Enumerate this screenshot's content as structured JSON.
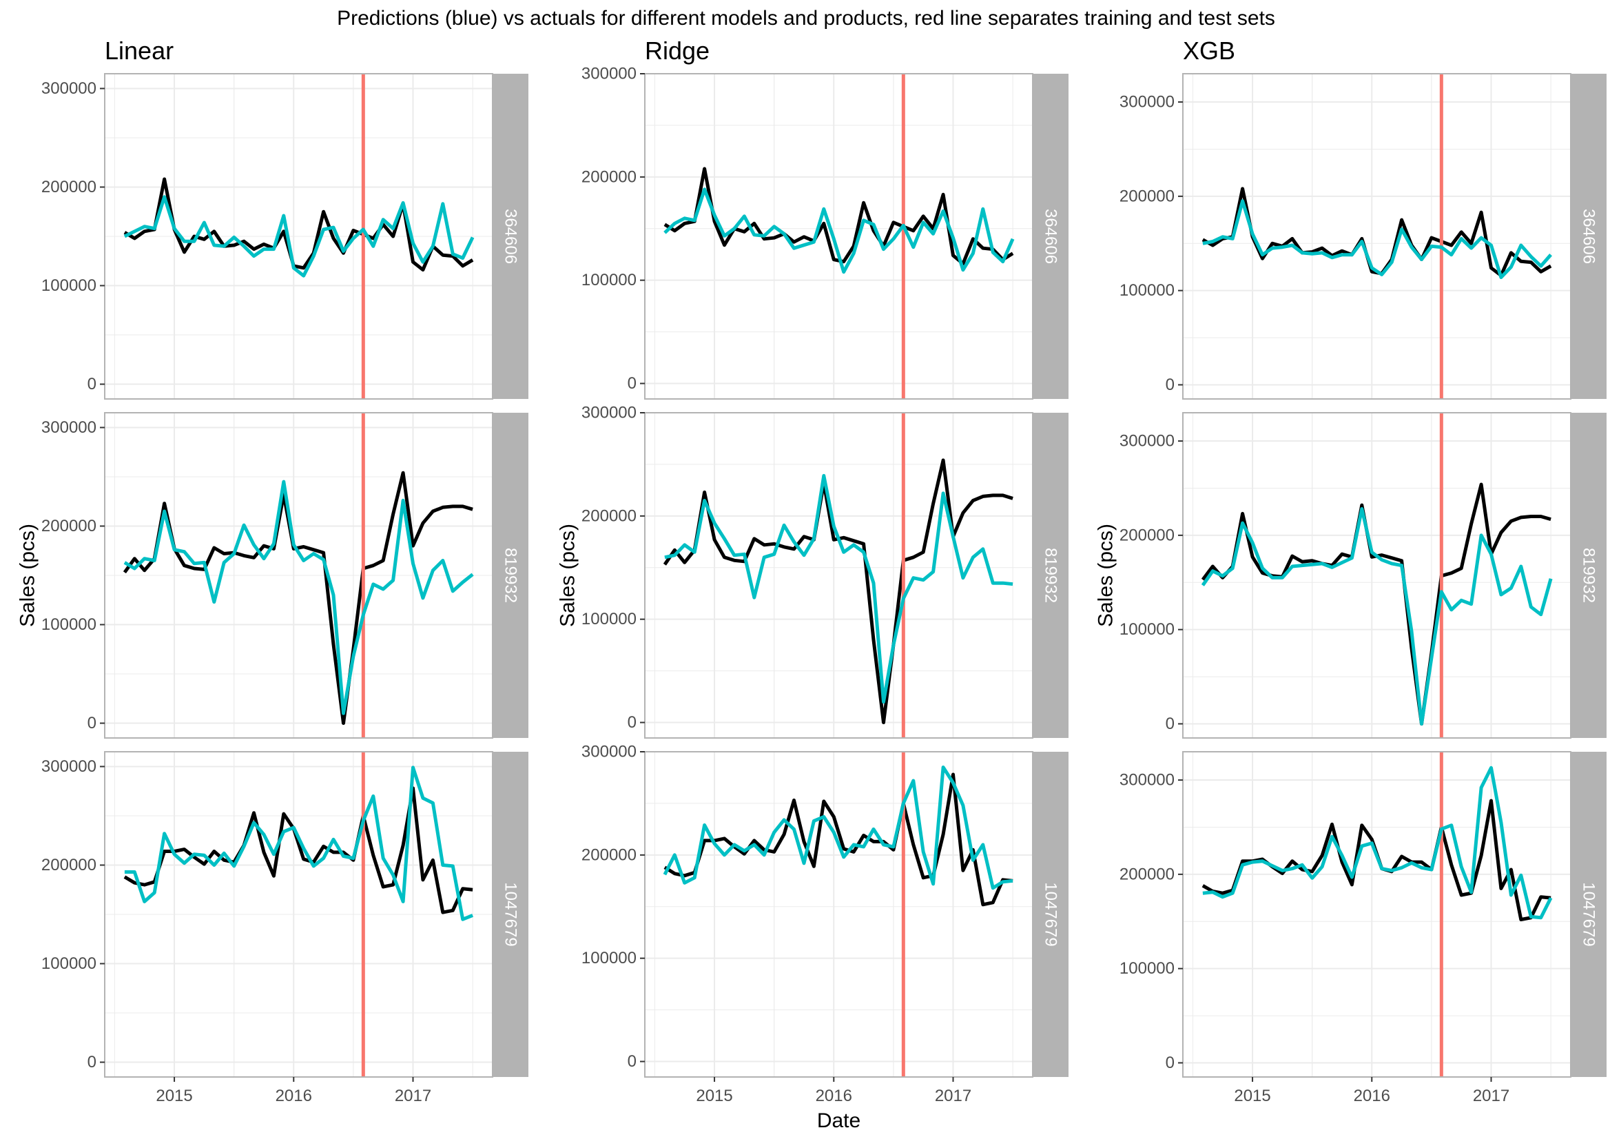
{
  "chart_data": {
    "type": "line",
    "title": "Predictions (blue) vs actuals for different models and products, red line separates training and test sets",
    "xlabel": "Date",
    "ylabel": "Sales (pcs)",
    "models": [
      "Linear",
      "Ridge",
      "XGB"
    ],
    "products": [
      "364606",
      "819932",
      "1047679"
    ],
    "x_ticks": [
      "2015",
      "2016",
      "2017"
    ],
    "x_range": [
      "2014-06",
      "2017-09"
    ],
    "split_date": "2016-08",
    "y_ticks": {
      "Linear": [
        "0",
        "100000",
        "200000",
        "300000"
      ],
      "Ridge": [
        "0",
        "100000",
        "200000",
        "300000"
      ],
      "XGB": [
        "0",
        "100000",
        "200000",
        "300000"
      ]
    },
    "ylim": {
      "Linear": [
        -15000,
        315000
      ],
      "Ridge": [
        -15000,
        300000
      ],
      "XGB": [
        -15000,
        330000
      ]
    },
    "grid": true,
    "colors": {
      "actual": "#000000",
      "prediction": "#00bfc4",
      "split_line": "#f8766d",
      "strip": "#b3b3b3",
      "grid": "#ebebeb",
      "panel_border": "#b3b3b3"
    },
    "months": [
      "2014-08",
      "2014-09",
      "2014-10",
      "2014-11",
      "2014-12",
      "2015-01",
      "2015-02",
      "2015-03",
      "2015-04",
      "2015-05",
      "2015-06",
      "2015-07",
      "2015-08",
      "2015-09",
      "2015-10",
      "2015-11",
      "2015-12",
      "2016-01",
      "2016-02",
      "2016-03",
      "2016-04",
      "2016-05",
      "2016-06",
      "2016-07",
      "2016-08",
      "2016-09",
      "2016-10",
      "2016-11",
      "2016-12",
      "2017-01",
      "2017-02",
      "2017-03",
      "2017-04",
      "2017-05",
      "2017-06",
      "2017-07"
    ],
    "actuals": {
      "364606": [
        154000,
        148000,
        155000,
        157000,
        208000,
        157000,
        134000,
        150000,
        147000,
        155000,
        140000,
        141000,
        145000,
        137000,
        142000,
        138000,
        155000,
        120000,
        118000,
        133000,
        175000,
        148000,
        133000,
        156000,
        152000,
        148000,
        162000,
        150000,
        183000,
        124000,
        116000,
        140000,
        131000,
        130000,
        120000,
        126000
      ],
      "819932": [
        153000,
        167000,
        155000,
        167000,
        223000,
        177000,
        160000,
        157000,
        156000,
        178000,
        172000,
        173000,
        170000,
        168000,
        180000,
        177000,
        232000,
        177000,
        179000,
        176000,
        173000,
        80000,
        0,
        75000,
        157000,
        160000,
        165000,
        212000,
        254000,
        180000,
        203000,
        215000,
        219000,
        220000,
        220000,
        217000
      ],
      "1047679": [
        188000,
        182000,
        180000,
        183000,
        214000,
        214000,
        216000,
        208000,
        201000,
        214000,
        205000,
        203000,
        220000,
        253000,
        213000,
        189000,
        252000,
        237000,
        206000,
        203000,
        219000,
        213000,
        213000,
        205000,
        250000,
        210000,
        178000,
        180000,
        220000,
        278000,
        185000,
        205000,
        152000,
        154000,
        176000,
        175000
      ]
    },
    "series": [
      {
        "model": "Linear",
        "product": "364606",
        "predictions": [
          150000,
          155000,
          160000,
          158000,
          190000,
          158000,
          145000,
          145000,
          164000,
          141000,
          140000,
          149000,
          140000,
          130000,
          137000,
          137000,
          171000,
          118000,
          110000,
          130000,
          157000,
          159000,
          135000,
          148000,
          157000,
          140000,
          167000,
          158000,
          184000,
          143000,
          124000,
          140000,
          183000,
          132000,
          128000,
          149000
        ]
      },
      {
        "model": "Linear",
        "product": "819932",
        "predictions": [
          163000,
          157000,
          167000,
          165000,
          215000,
          176000,
          174000,
          162000,
          163000,
          123000,
          163000,
          172000,
          201000,
          181000,
          167000,
          182000,
          245000,
          181000,
          165000,
          172000,
          166000,
          130000,
          10000,
          68000,
          110000,
          141000,
          136000,
          145000,
          226000,
          162000,
          127000,
          155000,
          165000,
          134000,
          143000,
          151000
        ]
      },
      {
        "model": "Linear",
        "product": "1047679",
        "predictions": [
          193000,
          193000,
          163000,
          172000,
          232000,
          211000,
          202000,
          211000,
          210000,
          200000,
          212000,
          199000,
          219000,
          243000,
          231000,
          211000,
          234000,
          238000,
          217000,
          199000,
          207000,
          226000,
          209000,
          207000,
          245000,
          270000,
          207000,
          190000,
          163000,
          299000,
          268000,
          263000,
          200000,
          199000,
          145000,
          149000
        ]
      },
      {
        "model": "Ridge",
        "product": "364606",
        "predictions": [
          146000,
          155000,
          160000,
          158000,
          188000,
          163000,
          143000,
          150000,
          162000,
          144000,
          143000,
          152000,
          145000,
          131000,
          134000,
          137000,
          169000,
          140000,
          108000,
          126000,
          158000,
          154000,
          130000,
          140000,
          153000,
          132000,
          156000,
          145000,
          167000,
          141000,
          110000,
          126000,
          169000,
          127000,
          118000,
          140000
        ]
      },
      {
        "model": "Ridge",
        "product": "819932",
        "predictions": [
          160000,
          162000,
          172000,
          165000,
          215000,
          193000,
          178000,
          162000,
          163000,
          121000,
          160000,
          163000,
          191000,
          175000,
          162000,
          178000,
          239000,
          190000,
          165000,
          172000,
          165000,
          135000,
          20000,
          75000,
          120000,
          140000,
          138000,
          146000,
          222000,
          180000,
          140000,
          160000,
          168000,
          135000,
          135000,
          134000
        ]
      },
      {
        "model": "Ridge",
        "product": "1047679",
        "predictions": [
          181000,
          200000,
          173000,
          178000,
          229000,
          211000,
          200000,
          210000,
          204000,
          210000,
          200000,
          222000,
          234000,
          225000,
          192000,
          233000,
          237000,
          222000,
          198000,
          210000,
          208000,
          225000,
          210000,
          208000,
          250000,
          272000,
          203000,
          172000,
          285000,
          270000,
          248000,
          195000,
          210000,
          168000,
          174000,
          175000
        ]
      },
      {
        "model": "XGB",
        "product": "364606",
        "predictions": [
          150000,
          152000,
          157000,
          155000,
          195000,
          160000,
          138000,
          145000,
          146000,
          148000,
          140000,
          139000,
          140000,
          135000,
          138000,
          138000,
          152000,
          124000,
          117000,
          130000,
          165000,
          146000,
          133000,
          147000,
          146000,
          138000,
          155000,
          145000,
          156000,
          148000,
          114000,
          125000,
          148000,
          136000,
          126000,
          138000
        ]
      },
      {
        "model": "XGB",
        "product": "819932",
        "predictions": [
          147000,
          162000,
          157000,
          165000,
          213000,
          192000,
          165000,
          155000,
          155000,
          167000,
          168000,
          169000,
          170000,
          166000,
          171000,
          176000,
          228000,
          182000,
          174000,
          170000,
          168000,
          98000,
          0,
          70000,
          140000,
          121000,
          131000,
          127000,
          200000,
          180000,
          137000,
          144000,
          167000,
          124000,
          116000,
          154000
        ]
      },
      {
        "model": "XGB",
        "product": "1047679",
        "predictions": [
          180000,
          181000,
          176000,
          180000,
          210000,
          213000,
          214000,
          209000,
          204000,
          206000,
          210000,
          196000,
          208000,
          240000,
          220000,
          197000,
          230000,
          233000,
          206000,
          204000,
          207000,
          212000,
          207000,
          205000,
          248000,
          252000,
          208000,
          181000,
          292000,
          313000,
          255000,
          178000,
          199000,
          155000,
          154000,
          175000
        ]
      }
    ]
  }
}
